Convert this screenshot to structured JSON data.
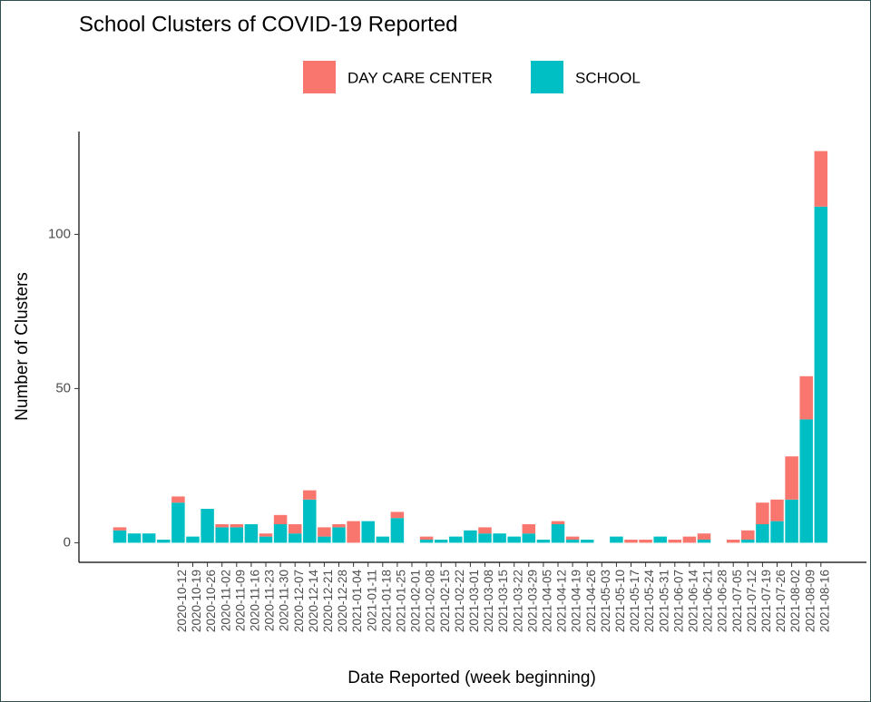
{
  "chart_data": {
    "type": "stacked_bar",
    "title": "School Clusters of COVID-19 Reported",
    "x_label": "Date Reported (week beginning)",
    "y_label": "Number of Clusters",
    "categories": [
      null,
      null,
      null,
      null,
      "2020-10-12",
      "2020-10-19",
      "2020-10-26",
      "2020-11-02",
      "2020-11-09",
      "2020-11-16",
      "2020-11-23",
      "2020-11-30",
      "2020-12-07",
      "2020-12-14",
      "2020-12-21",
      "2020-12-28",
      "2021-01-04",
      "2021-01-11",
      "2021-01-18",
      "2021-01-25",
      "2021-02-01",
      "2021-02-08",
      "2021-02-15",
      "2021-02-22",
      "2021-03-01",
      "2021-03-08",
      "2021-03-15",
      "2021-03-22",
      "2021-03-29",
      "2021-04-05",
      "2021-04-12",
      "2021-04-19",
      "2021-04-26",
      "2021-05-03",
      "2021-05-10",
      "2021-05-17",
      "2021-05-24",
      "2021-05-31",
      "2021-06-07",
      "2021-06-14",
      "2021-06-21",
      "2021-06-28",
      "2021-07-05",
      "2021-07-12",
      "2021-07-19",
      "2021-07-26",
      "2021-08-02",
      "2021-08-09",
      "2021-08-16"
    ],
    "series": [
      {
        "name": "DAY CARE CENTER",
        "color": "#F8766D",
        "values": [
          1,
          0,
          0,
          0,
          2,
          0,
          0,
          1,
          1,
          0,
          1,
          3,
          3,
          3,
          3,
          1,
          7,
          0,
          0,
          2,
          0,
          1,
          0,
          0,
          0,
          2,
          0,
          0,
          3,
          0,
          1,
          1,
          0,
          0,
          0,
          1,
          1,
          0,
          1,
          2,
          2,
          0,
          1,
          3,
          7,
          7,
          14,
          14,
          18
        ]
      },
      {
        "name": "SCHOOL",
        "color": "#00BFC4",
        "values": [
          4,
          3,
          3,
          1,
          13,
          2,
          11,
          5,
          5,
          6,
          2,
          6,
          3,
          14,
          2,
          5,
          0,
          7,
          2,
          8,
          0,
          1,
          1,
          2,
          4,
          3,
          3,
          2,
          3,
          1,
          6,
          1,
          1,
          0,
          2,
          0,
          0,
          2,
          0,
          0,
          1,
          0,
          0,
          1,
          6,
          7,
          14,
          40,
          109
        ]
      }
    ],
    "ylim": [
      -6.35,
      133.35
    ],
    "yticks": [
      0,
      50,
      100
    ],
    "grid": false,
    "legend_position": "top"
  }
}
